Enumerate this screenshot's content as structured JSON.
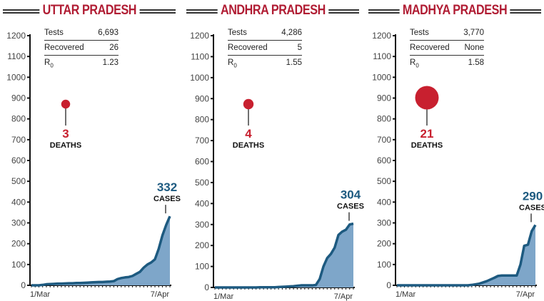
{
  "chart_data": [
    {
      "type": "area",
      "title": "UTTAR PRADESH",
      "stats": [
        {
          "label": "Tests",
          "value": "6,693"
        },
        {
          "label": "Recovered",
          "value": "26"
        },
        {
          "label": "R0",
          "value": "1.23"
        }
      ],
      "deaths": 3,
      "deaths_label": "DEATHS",
      "cases": 332,
      "cases_label": "CASES",
      "x_labels": [
        "1/Mar",
        "7/Apr"
      ],
      "ylim": [
        0,
        1200
      ],
      "yticks": [
        0,
        100,
        200,
        300,
        400,
        500,
        600,
        700,
        800,
        900,
        1000,
        1100,
        1200
      ],
      "values": [
        0,
        0,
        0,
        2,
        5,
        6,
        7,
        8,
        8,
        9,
        10,
        10,
        11,
        11,
        12,
        13,
        14,
        15,
        16,
        16,
        17,
        18,
        20,
        30,
        35,
        38,
        40,
        45,
        55,
        65,
        85,
        100,
        110,
        125,
        175,
        240,
        290,
        332
      ]
    },
    {
      "type": "area",
      "title": "ANDHRA PRADESH",
      "stats": [
        {
          "label": "Tests",
          "value": "4,286"
        },
        {
          "label": "Recovered",
          "value": "5"
        },
        {
          "label": "R0",
          "value": "1.55"
        }
      ],
      "deaths": 4,
      "deaths_label": "DEATHS",
      "cases": 304,
      "cases_label": "CASES",
      "x_labels": [
        "1/Mar",
        "7/Apr"
      ],
      "ylim": [
        0,
        1200
      ],
      "yticks": [
        0,
        100,
        200,
        300,
        400,
        500,
        600,
        700,
        800,
        900,
        1000,
        1100,
        1200
      ],
      "values": [
        0,
        0,
        0,
        0,
        0,
        0,
        0,
        0,
        0,
        0,
        0,
        0,
        1,
        1,
        1,
        1,
        1,
        2,
        3,
        4,
        5,
        6,
        8,
        10,
        10,
        10,
        10,
        12,
        40,
        100,
        140,
        160,
        190,
        250,
        266,
        275,
        300,
        304
      ]
    },
    {
      "type": "area",
      "title": "MADHYA PRADESH",
      "stats": [
        {
          "label": "Tests",
          "value": "3,770"
        },
        {
          "label": "Recovered",
          "value": "None"
        },
        {
          "label": "R0",
          "value": "1.58"
        }
      ],
      "deaths": 21,
      "deaths_label": "DEATHS",
      "cases": 290,
      "cases_label": "CASES",
      "x_labels": [
        "1/Mar",
        "7/Apr"
      ],
      "ylim": [
        0,
        1200
      ],
      "yticks": [
        0,
        100,
        200,
        300,
        400,
        500,
        600,
        700,
        800,
        900,
        1000,
        1100,
        1200
      ],
      "values": [
        0,
        0,
        0,
        0,
        0,
        0,
        0,
        0,
        0,
        0,
        0,
        0,
        0,
        0,
        0,
        0,
        0,
        0,
        0,
        0,
        2,
        5,
        8,
        14,
        20,
        28,
        36,
        45,
        47,
        47,
        47,
        47,
        47,
        100,
        190,
        195,
        260,
        290
      ]
    }
  ],
  "colors": {
    "title": "#b01c33",
    "line": "#1d5a80",
    "fill": "#7ea6c9",
    "death": "#c8202f",
    "cases_text": "#1d5a80"
  }
}
